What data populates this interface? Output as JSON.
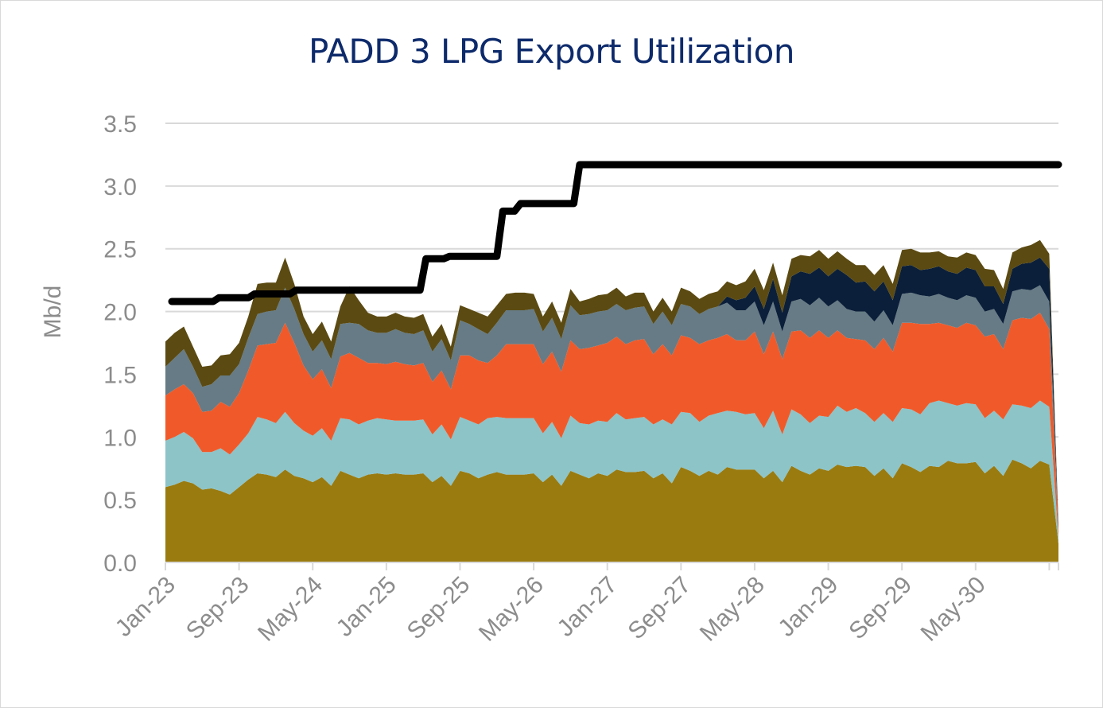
{
  "chart_data": {
    "type": "area",
    "title": "PADD 3 LPG Export Utilization",
    "xlabel": "",
    "ylabel": "Mb/d",
    "ylim": [
      0,
      3.5
    ],
    "yticks": [
      "0.0",
      "0.5",
      "1.0",
      "1.5",
      "2.0",
      "2.5",
      "3.0",
      "3.5"
    ],
    "xticks": [
      "Jan-23",
      "Sep-23",
      "May-24",
      "Jan-25",
      "Sep-25",
      "May-26",
      "Jan-27",
      "Sep-27",
      "May-28",
      "Jan-29",
      "Sep-29",
      "May-30"
    ],
    "grid": true,
    "stacked": true,
    "x_start": "Jan-23",
    "x_frequency": "monthly",
    "colors": [
      "#9a7b10",
      "#8cc4c8",
      "#f05a2a",
      "#667b85",
      "#0b1f3a",
      "#5b4a12"
    ],
    "line_color": "#000000",
    "series": [
      {
        "values": [
          0.6,
          0.62,
          0.65,
          0.63,
          0.58,
          0.59,
          0.57,
          0.54,
          0.6,
          0.66,
          0.71,
          0.7,
          0.68,
          0.74,
          0.69,
          0.67,
          0.64,
          0.68,
          0.61,
          0.73,
          0.7,
          0.67,
          0.7,
          0.71,
          0.7,
          0.71,
          0.7,
          0.7,
          0.71,
          0.64,
          0.69,
          0.61,
          0.73,
          0.71,
          0.67,
          0.7,
          0.72,
          0.7,
          0.7,
          0.7,
          0.71,
          0.64,
          0.7,
          0.61,
          0.73,
          0.7,
          0.67,
          0.71,
          0.69,
          0.74,
          0.72,
          0.72,
          0.73,
          0.67,
          0.71,
          0.63,
          0.76,
          0.73,
          0.69,
          0.73,
          0.7,
          0.76,
          0.74,
          0.74,
          0.74,
          0.67,
          0.73,
          0.64,
          0.77,
          0.73,
          0.7,
          0.75,
          0.73,
          0.78,
          0.76,
          0.77,
          0.76,
          0.69,
          0.75,
          0.67,
          0.79,
          0.76,
          0.72,
          0.77,
          0.76,
          0.81,
          0.79,
          0.79,
          0.8,
          0.71,
          0.77,
          0.69,
          0.82,
          0.79,
          0.75,
          0.81,
          0.78,
          0.15
        ]
      },
      {
        "values": [
          0.37,
          0.38,
          0.39,
          0.36,
          0.3,
          0.29,
          0.34,
          0.32,
          0.34,
          0.37,
          0.45,
          0.44,
          0.43,
          0.46,
          0.42,
          0.38,
          0.37,
          0.39,
          0.36,
          0.42,
          0.44,
          0.43,
          0.43,
          0.44,
          0.44,
          0.42,
          0.43,
          0.43,
          0.43,
          0.38,
          0.41,
          0.37,
          0.43,
          0.42,
          0.43,
          0.45,
          0.44,
          0.45,
          0.45,
          0.45,
          0.44,
          0.39,
          0.42,
          0.38,
          0.44,
          0.41,
          0.43,
          0.42,
          0.43,
          0.45,
          0.42,
          0.43,
          0.43,
          0.43,
          0.43,
          0.47,
          0.44,
          0.46,
          0.43,
          0.44,
          0.49,
          0.45,
          0.46,
          0.44,
          0.45,
          0.4,
          0.48,
          0.38,
          0.45,
          0.45,
          0.41,
          0.42,
          0.43,
          0.47,
          0.44,
          0.46,
          0.43,
          0.43,
          0.44,
          0.45,
          0.44,
          0.46,
          0.46,
          0.5,
          0.53,
          0.46,
          0.46,
          0.48,
          0.46,
          0.44,
          0.44,
          0.45,
          0.44,
          0.46,
          0.48,
          0.48,
          0.46,
          0.05
        ]
      },
      {
        "values": [
          0.36,
          0.38,
          0.38,
          0.36,
          0.32,
          0.33,
          0.37,
          0.38,
          0.41,
          0.5,
          0.57,
          0.6,
          0.64,
          0.71,
          0.64,
          0.52,
          0.45,
          0.47,
          0.42,
          0.49,
          0.53,
          0.53,
          0.46,
          0.44,
          0.44,
          0.47,
          0.45,
          0.44,
          0.45,
          0.42,
          0.43,
          0.4,
          0.49,
          0.52,
          0.51,
          0.44,
          0.49,
          0.59,
          0.59,
          0.59,
          0.59,
          0.55,
          0.56,
          0.53,
          0.6,
          0.59,
          0.61,
          0.6,
          0.63,
          0.61,
          0.6,
          0.62,
          0.62,
          0.56,
          0.6,
          0.55,
          0.61,
          0.6,
          0.62,
          0.6,
          0.6,
          0.61,
          0.57,
          0.59,
          0.65,
          0.59,
          0.63,
          0.6,
          0.62,
          0.67,
          0.68,
          0.68,
          0.63,
          0.6,
          0.59,
          0.55,
          0.58,
          0.58,
          0.6,
          0.56,
          0.68,
          0.69,
          0.72,
          0.63,
          0.62,
          0.62,
          0.62,
          0.64,
          0.63,
          0.65,
          0.61,
          0.56,
          0.67,
          0.7,
          0.71,
          0.7,
          0.62,
          0.05
        ]
      },
      {
        "values": [
          0.23,
          0.25,
          0.28,
          0.21,
          0.2,
          0.21,
          0.21,
          0.25,
          0.23,
          0.26,
          0.25,
          0.26,
          0.26,
          0.28,
          0.27,
          0.25,
          0.22,
          0.23,
          0.23,
          0.26,
          0.24,
          0.27,
          0.26,
          0.24,
          0.25,
          0.26,
          0.25,
          0.25,
          0.26,
          0.24,
          0.25,
          0.23,
          0.28,
          0.25,
          0.25,
          0.23,
          0.26,
          0.27,
          0.27,
          0.27,
          0.28,
          0.26,
          0.27,
          0.26,
          0.28,
          0.27,
          0.27,
          0.27,
          0.26,
          0.26,
          0.27,
          0.26,
          0.26,
          0.24,
          0.26,
          0.24,
          0.25,
          0.25,
          0.24,
          0.25,
          0.25,
          0.25,
          0.24,
          0.24,
          0.24,
          0.23,
          0.24,
          0.22,
          0.24,
          0.25,
          0.26,
          0.26,
          0.25,
          0.24,
          0.23,
          0.22,
          0.23,
          0.22,
          0.22,
          0.21,
          0.23,
          0.24,
          0.23,
          0.22,
          0.23,
          0.22,
          0.22,
          0.22,
          0.22,
          0.2,
          0.2,
          0.2,
          0.23,
          0.23,
          0.23,
          0.22,
          0.22,
          0.03
        ]
      },
      {
        "values": [
          0,
          0,
          0,
          0,
          0,
          0,
          0,
          0,
          0,
          0,
          0,
          0,
          0,
          0,
          0,
          0,
          0,
          0,
          0,
          0,
          0,
          0,
          0,
          0,
          0,
          0,
          0,
          0,
          0,
          0,
          0,
          0,
          0,
          0,
          0,
          0,
          0,
          0,
          0,
          0,
          0,
          0,
          0,
          0,
          0,
          0,
          0,
          0,
          0,
          0,
          0,
          0,
          0,
          0,
          0,
          0,
          0,
          0,
          0,
          0,
          0,
          0.05,
          0.08,
          0.1,
          0.12,
          0.13,
          0.18,
          0.15,
          0.2,
          0.22,
          0.25,
          0.24,
          0.24,
          0.25,
          0.27,
          0.23,
          0.24,
          0.24,
          0.23,
          0.2,
          0.22,
          0.22,
          0.2,
          0.22,
          0.22,
          0.21,
          0.21,
          0.22,
          0.22,
          0.2,
          0.18,
          0.16,
          0.18,
          0.2,
          0.22,
          0.22,
          0.26,
          0.02
        ]
      },
      {
        "values": [
          0.2,
          0.2,
          0.18,
          0.16,
          0.16,
          0.15,
          0.16,
          0.17,
          0.17,
          0.17,
          0.24,
          0.23,
          0.22,
          0.24,
          0.2,
          0.14,
          0.14,
          0.15,
          0.14,
          0.14,
          0.29,
          0.19,
          0.14,
          0.13,
          0.13,
          0.13,
          0.13,
          0.13,
          0.13,
          0.12,
          0.12,
          0.11,
          0.12,
          0.12,
          0.13,
          0.14,
          0.14,
          0.13,
          0.14,
          0.14,
          0.12,
          0.12,
          0.13,
          0.13,
          0.13,
          0.11,
          0.12,
          0.13,
          0.13,
          0.13,
          0.11,
          0.12,
          0.11,
          0.1,
          0.11,
          0.11,
          0.13,
          0.12,
          0.12,
          0.12,
          0.12,
          0.12,
          0.12,
          0.13,
          0.14,
          0.15,
          0.13,
          0.14,
          0.14,
          0.13,
          0.14,
          0.14,
          0.14,
          0.14,
          0.13,
          0.14,
          0.13,
          0.13,
          0.13,
          0.13,
          0.13,
          0.13,
          0.14,
          0.13,
          0.12,
          0.12,
          0.13,
          0.12,
          0.12,
          0.14,
          0.13,
          0.12,
          0.13,
          0.13,
          0.14,
          0.14,
          0.12,
          0.01
        ]
      }
    ],
    "capacity_line": {
      "values": [
        2.08,
        2.08,
        2.08,
        2.08,
        2.08,
        2.08,
        2.08,
        2.08,
        2.11,
        2.11,
        2.11,
        2.11,
        2.11,
        2.11,
        2.14,
        2.14,
        2.14,
        2.14,
        2.14,
        2.14,
        2.14,
        2.17,
        2.17,
        2.17,
        2.17,
        2.17,
        2.17,
        2.17,
        2.17,
        2.17,
        2.17,
        2.17,
        2.17,
        2.17,
        2.17,
        2.17,
        2.17,
        2.17,
        2.17,
        2.17,
        2.17,
        2.17,
        2.17,
        2.42,
        2.42,
        2.42,
        2.42,
        2.44,
        2.44,
        2.44,
        2.44,
        2.44,
        2.44,
        2.44,
        2.44,
        2.44,
        2.8,
        2.8,
        2.8,
        2.86,
        2.86,
        2.86,
        2.86,
        2.86,
        2.86,
        2.86,
        2.86,
        2.86,
        2.86,
        3.17,
        3.17,
        3.17,
        3.17,
        3.17,
        3.17,
        3.17,
        3.17,
        3.17,
        3.17,
        3.17,
        3.17,
        3.17,
        3.17,
        3.17,
        3.17,
        3.17,
        3.17,
        3.17,
        3.17,
        3.17,
        3.17,
        3.17,
        3.17,
        3.17,
        3.17,
        3.17,
        3.17,
        3.17,
        3.17,
        3.17,
        3.17,
        3.17,
        3.17,
        3.17,
        3.17,
        3.17,
        3.17,
        3.17,
        3.17,
        3.17,
        3.17,
        3.17,
        3.17,
        3.17,
        3.17,
        3.17,
        3.17,
        3.17,
        3.17,
        3.17,
        3.17,
        3.17,
        3.17,
        3.17,
        3.17,
        3.17,
        3.17,
        3.17,
        3.17,
        3.17,
        3.17,
        3.17,
        3.17,
        3.17,
        3.17,
        3.17,
        3.17,
        3.17,
        3.17,
        3.17,
        3.17,
        3.17,
        3.17,
        3.17,
        3.17,
        3.17,
        3.17,
        3.17,
        3.17,
        3.17,
        3.17
      ]
    }
  }
}
